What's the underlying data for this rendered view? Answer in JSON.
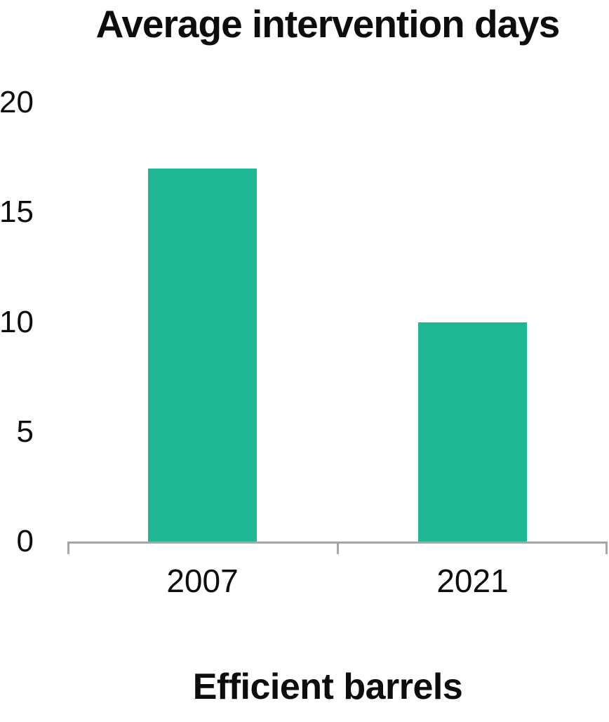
{
  "chart_data": {
    "type": "bar",
    "title": "Average intervention days",
    "xlabel": "Efficient barrels",
    "ylabel": "",
    "categories": [
      "2007",
      "2021"
    ],
    "values": [
      17,
      10
    ],
    "yticks": [
      0,
      5,
      10,
      15,
      20
    ],
    "ylim": [
      0,
      20
    ],
    "grid": false,
    "legend": false,
    "bar_color": "#20b794",
    "axis_color": "#a6a6a6",
    "text_color": "#0d0d0d"
  }
}
